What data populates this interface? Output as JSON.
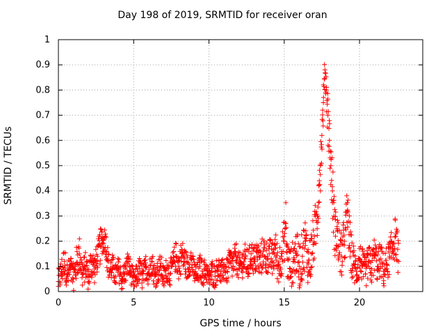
{
  "chart_data": {
    "type": "scatter",
    "title": "Day 198 of 2019, SRMTID for receiver oran",
    "xlabel": "GPS time / hours",
    "ylabel": "SRMTID / TECUs",
    "xlim": [
      0,
      24.2
    ],
    "ylim": [
      0,
      1
    ],
    "xticks": [
      0,
      5,
      10,
      15,
      20
    ],
    "yticks": [
      0,
      0.1,
      0.2,
      0.3,
      0.4,
      0.5,
      0.6,
      0.7,
      0.8,
      0.9,
      1
    ],
    "xtick_labels": [
      "0",
      "5",
      "10",
      "15",
      "20"
    ],
    "ytick_labels": [
      "0",
      "0.1",
      "0.2",
      "0.3",
      "0.4",
      "0.5",
      "0.6",
      "0.7",
      "0.8",
      "0.9",
      "1"
    ],
    "grid": true,
    "marker": "+",
    "color": "#ff0000",
    "series": [
      {
        "name": "SRMTID",
        "x": [
          0.0,
          0.2,
          0.4,
          0.6,
          0.8,
          1.0,
          1.2,
          1.4,
          1.6,
          1.8,
          2.0,
          2.2,
          2.4,
          2.6,
          2.8,
          2.9,
          3.0,
          3.1,
          3.2,
          3.3,
          3.4,
          3.6,
          3.8,
          4.0,
          4.2,
          4.4,
          4.6,
          4.8,
          5.0,
          5.2,
          5.4,
          5.6,
          5.8,
          6.0,
          6.2,
          6.4,
          6.6,
          6.8,
          7.0,
          7.2,
          7.4,
          7.6,
          7.8,
          8.0,
          8.2,
          8.4,
          8.6,
          8.8,
          9.0,
          9.2,
          9.4,
          9.6,
          9.8,
          10.0,
          10.2,
          10.4,
          10.6,
          10.8,
          11.0,
          11.2,
          11.4,
          11.6,
          11.8,
          12.0,
          12.2,
          12.4,
          12.6,
          12.8,
          13.0,
          13.2,
          13.4,
          13.6,
          13.8,
          14.0,
          14.2,
          14.4,
          14.6,
          14.8,
          15.0,
          15.1,
          15.2,
          15.4,
          15.6,
          15.8,
          16.0,
          16.2,
          16.4,
          16.6,
          16.8,
          17.0,
          17.2,
          17.3,
          17.4,
          17.5,
          17.6,
          17.7,
          17.8,
          17.9,
          18.0,
          18.1,
          18.2,
          18.3,
          18.4,
          18.5,
          18.6,
          18.8,
          19.0,
          19.2,
          19.4,
          19.6,
          19.8,
          20.0,
          20.2,
          20.4,
          20.6,
          20.8,
          21.0,
          21.2,
          21.4,
          21.6,
          21.8,
          22.0,
          22.2,
          22.4,
          22.6
        ],
        "y": [
          0.04,
          0.08,
          0.12,
          0.06,
          0.09,
          0.05,
          0.11,
          0.15,
          0.07,
          0.1,
          0.06,
          0.12,
          0.09,
          0.14,
          0.18,
          0.21,
          0.19,
          0.22,
          0.16,
          0.12,
          0.08,
          0.1,
          0.06,
          0.09,
          0.05,
          0.07,
          0.11,
          0.08,
          0.04,
          0.06,
          0.09,
          0.05,
          0.1,
          0.07,
          0.12,
          0.06,
          0.08,
          0.1,
          0.05,
          0.09,
          0.07,
          0.11,
          0.14,
          0.1,
          0.15,
          0.12,
          0.09,
          0.13,
          0.08,
          0.06,
          0.1,
          0.07,
          0.09,
          0.05,
          0.08,
          0.06,
          0.1,
          0.07,
          0.09,
          0.08,
          0.12,
          0.1,
          0.14,
          0.09,
          0.11,
          0.13,
          0.1,
          0.15,
          0.12,
          0.14,
          0.11,
          0.16,
          0.13,
          0.15,
          0.12,
          0.17,
          0.1,
          0.14,
          0.2,
          0.27,
          0.13,
          0.09,
          0.12,
          0.16,
          0.1,
          0.14,
          0.2,
          0.11,
          0.15,
          0.22,
          0.3,
          0.42,
          0.5,
          0.62,
          0.75,
          0.88,
          0.8,
          0.7,
          0.6,
          0.5,
          0.4,
          0.3,
          0.22,
          0.25,
          0.18,
          0.14,
          0.2,
          0.32,
          0.16,
          0.11,
          0.08,
          0.13,
          0.1,
          0.07,
          0.12,
          0.09,
          0.15,
          0.1,
          0.13,
          0.08,
          0.11,
          0.14,
          0.18,
          0.22,
          0.12
        ],
        "spread": [
          0.05,
          0.06,
          0.06,
          0.06,
          0.06,
          0.06,
          0.07,
          0.07,
          0.06,
          0.06,
          0.06,
          0.07,
          0.06,
          0.06,
          0.07,
          0.06,
          0.05,
          0.05,
          0.06,
          0.06,
          0.05,
          0.05,
          0.05,
          0.05,
          0.05,
          0.05,
          0.05,
          0.05,
          0.04,
          0.05,
          0.05,
          0.05,
          0.05,
          0.05,
          0.05,
          0.05,
          0.05,
          0.05,
          0.05,
          0.05,
          0.05,
          0.05,
          0.06,
          0.06,
          0.06,
          0.06,
          0.05,
          0.05,
          0.05,
          0.05,
          0.05,
          0.05,
          0.05,
          0.04,
          0.05,
          0.05,
          0.05,
          0.05,
          0.05,
          0.05,
          0.06,
          0.06,
          0.06,
          0.06,
          0.06,
          0.06,
          0.06,
          0.06,
          0.06,
          0.07,
          0.07,
          0.07,
          0.07,
          0.07,
          0.07,
          0.08,
          0.08,
          0.08,
          0.09,
          0.1,
          0.09,
          0.08,
          0.09,
          0.09,
          0.09,
          0.1,
          0.1,
          0.09,
          0.1,
          0.1,
          0.1,
          0.1,
          0.1,
          0.08,
          0.08,
          0.06,
          0.08,
          0.1,
          0.12,
          0.12,
          0.12,
          0.12,
          0.1,
          0.1,
          0.1,
          0.09,
          0.1,
          0.1,
          0.09,
          0.08,
          0.07,
          0.07,
          0.07,
          0.06,
          0.07,
          0.07,
          0.07,
          0.07,
          0.07,
          0.07,
          0.07,
          0.07,
          0.08,
          0.08,
          0.07
        ]
      }
    ]
  }
}
